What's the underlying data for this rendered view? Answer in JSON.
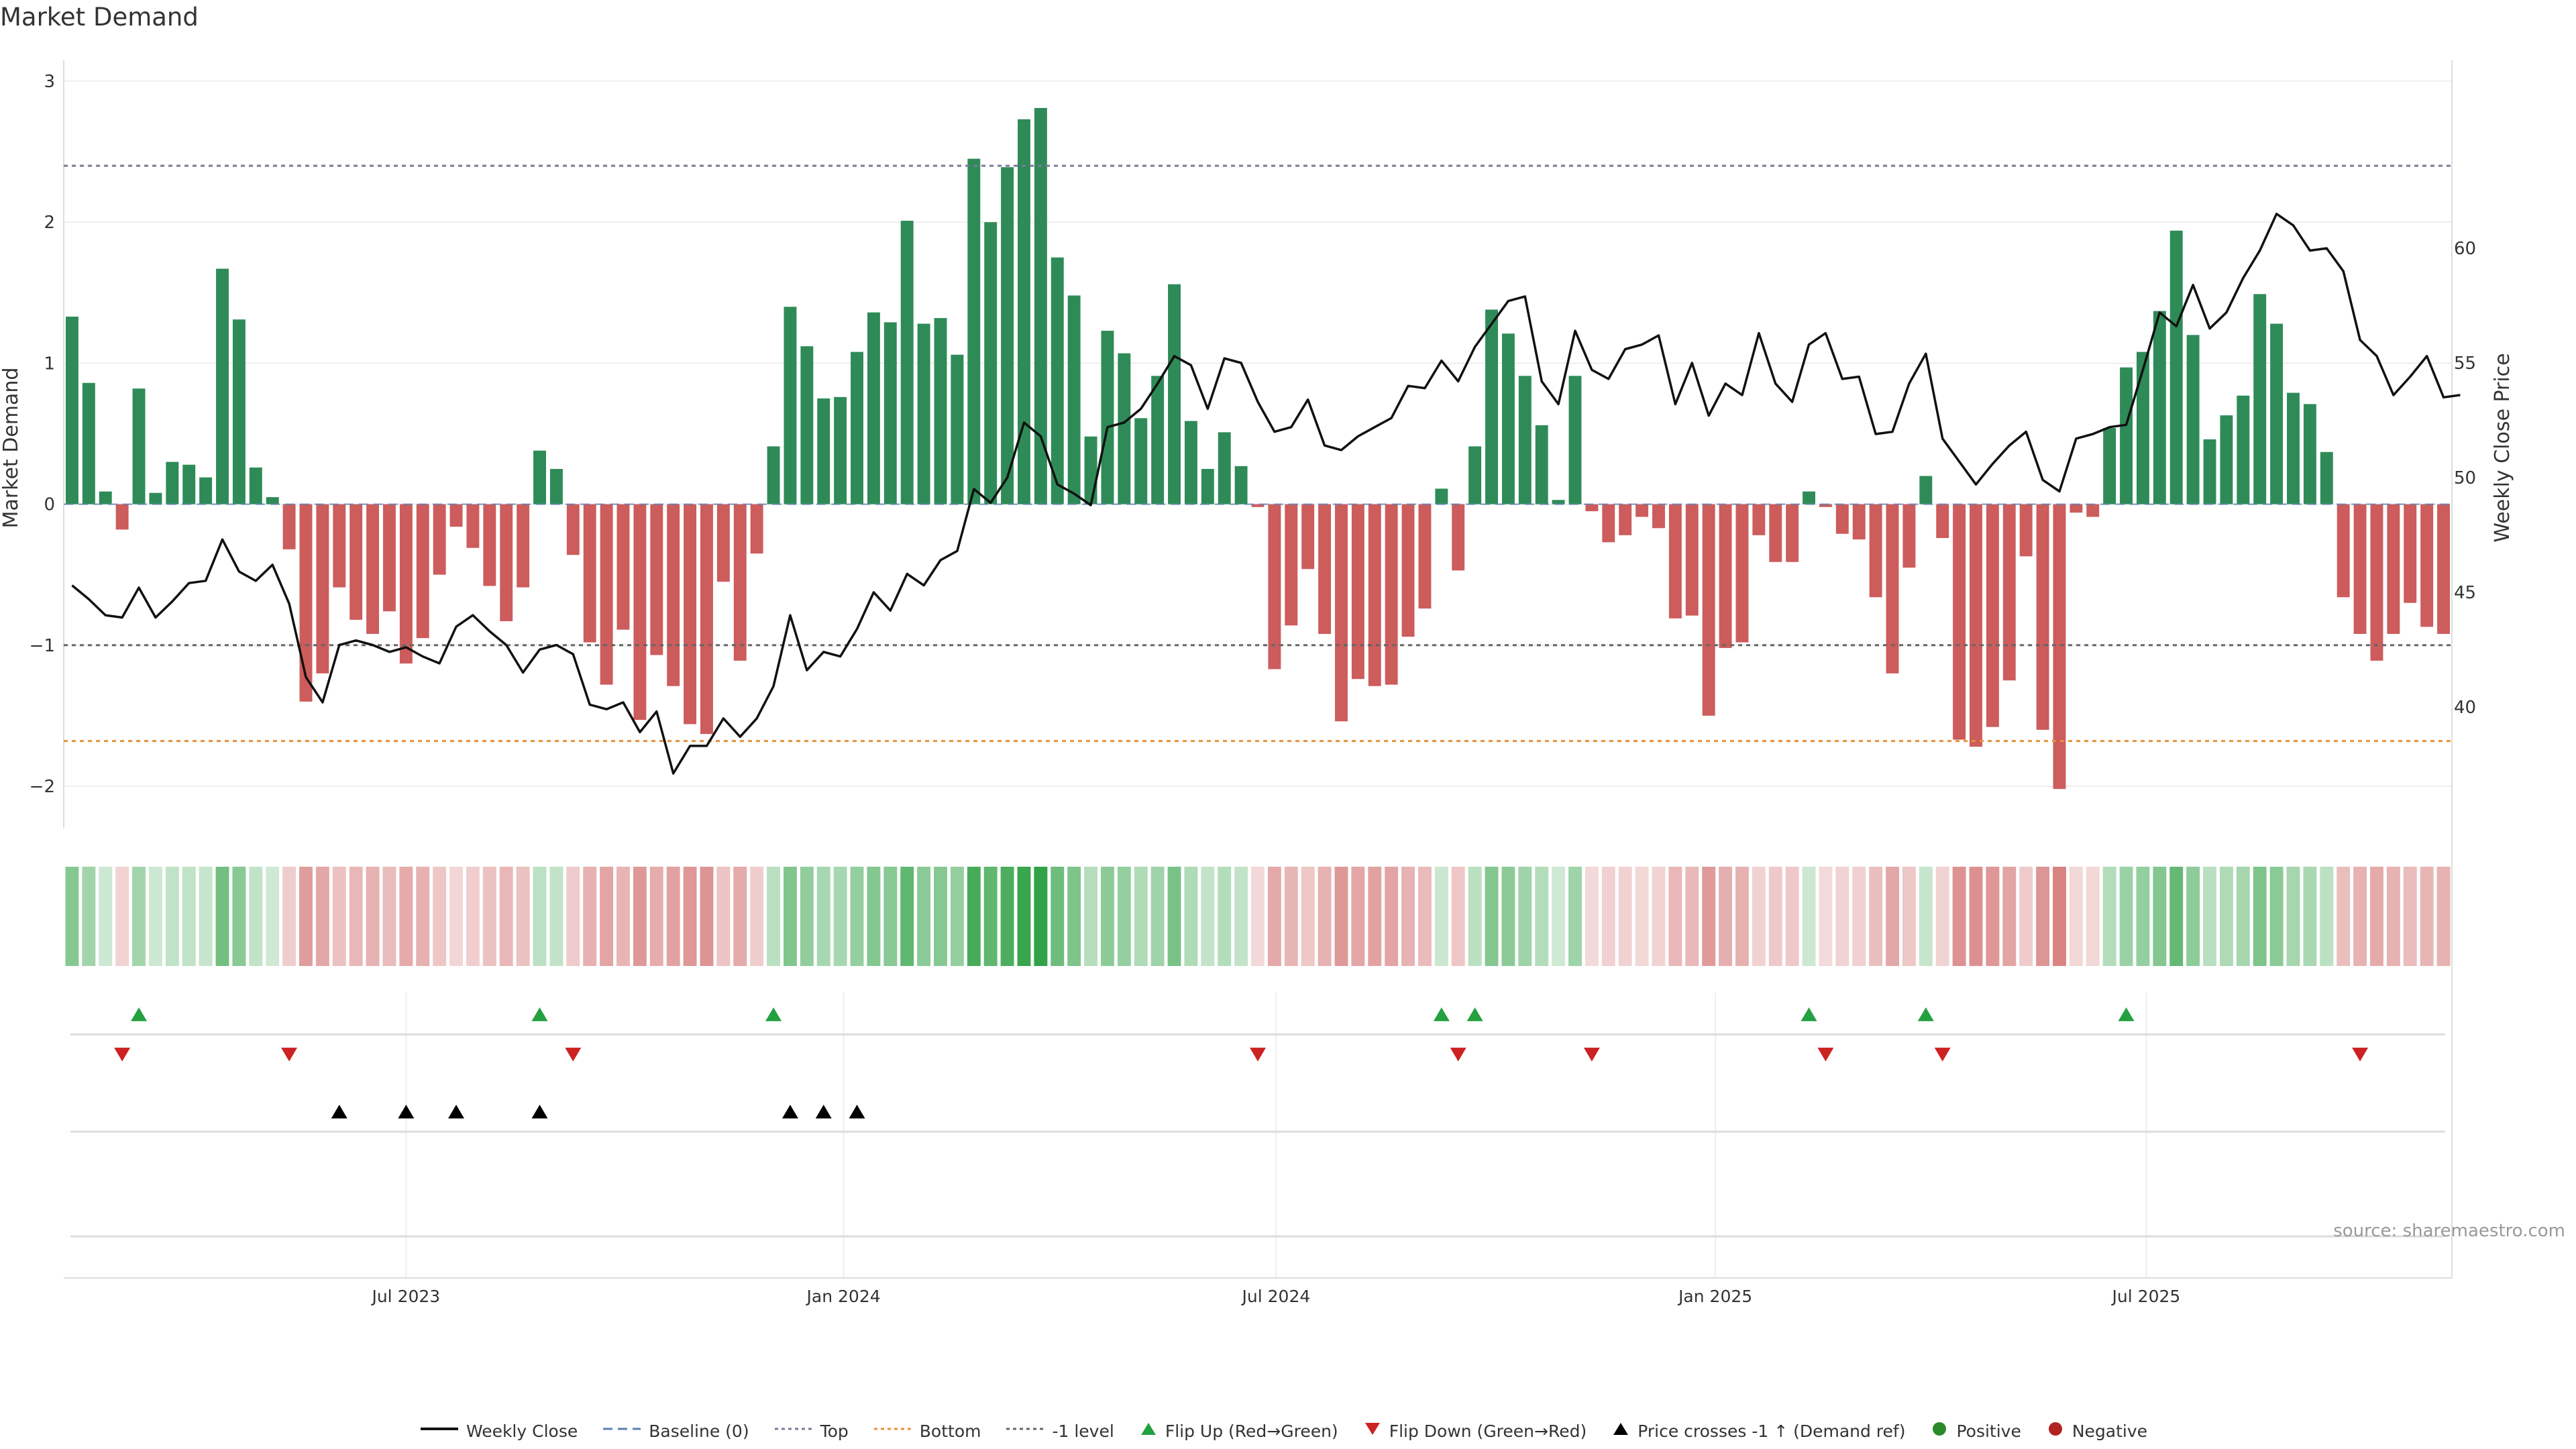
{
  "chart_data": {
    "type": "bar",
    "title": "Market Demand",
    "ylabel": "Market Demand",
    "y2label": "Weekly Close Price",
    "ylim": [
      -2.3,
      3.1
    ],
    "y2lim": [
      34.7,
      67.9
    ],
    "yticks": [
      -2,
      -1,
      0,
      1,
      2,
      3
    ],
    "y2ticks": [
      40,
      45,
      50,
      55,
      60
    ],
    "xticks": [
      {
        "label": "Jul 2023",
        "week": 20.5
      },
      {
        "label": "Jan 2024",
        "week": 46.7
      },
      {
        "label": "Jul 2024",
        "week": 72.6
      },
      {
        "label": "Jan 2025",
        "week": 98.9
      },
      {
        "label": "Jul 2025",
        "week": 124.7
      }
    ],
    "reference_lines": {
      "top": 2.4,
      "bottom": -1.68,
      "minus_one": -1,
      "baseline": 0
    },
    "demand": [
      1.33,
      0.86,
      0.09,
      -0.18,
      0.82,
      0.08,
      0.3,
      0.28,
      0.19,
      1.67,
      1.31,
      0.26,
      0.05,
      -0.32,
      -1.4,
      -1.2,
      -0.59,
      -0.82,
      -0.92,
      -0.76,
      -1.13,
      -0.95,
      -0.5,
      -0.16,
      -0.31,
      -0.58,
      -0.83,
      -0.59,
      0.38,
      0.25,
      -0.36,
      -0.98,
      -1.28,
      -0.89,
      -1.53,
      -1.07,
      -1.29,
      -1.56,
      -1.63,
      -0.55,
      -1.11,
      -0.35,
      0.41,
      1.4,
      1.12,
      0.75,
      0.76,
      1.08,
      1.36,
      1.29,
      2.01,
      1.28,
      1.32,
      1.06,
      2.45,
      2.0,
      2.39,
      2.73,
      2.81,
      1.75,
      1.48,
      0.48,
      1.23,
      1.07,
      0.61,
      0.91,
      1.56,
      0.59,
      0.25,
      0.51,
      0.27,
      -0.02,
      -1.17,
      -0.86,
      -0.46,
      -0.92,
      -1.54,
      -1.24,
      -1.29,
      -1.28,
      -0.94,
      -0.74,
      0.11,
      -0.47,
      0.41,
      1.38,
      1.21,
      0.91,
      0.56,
      0.03,
      0.91,
      -0.05,
      -0.27,
      -0.22,
      -0.09,
      -0.17,
      -0.81,
      -0.79,
      -1.5,
      -1.02,
      -0.98,
      -0.22,
      -0.41,
      -0.41,
      0.09,
      -0.02,
      -0.21,
      -0.25,
      -0.66,
      -1.2,
      -0.45,
      0.2,
      -0.24,
      -1.67,
      -1.72,
      -1.58,
      -1.25,
      -0.37,
      -1.6,
      -2.02,
      -0.06,
      -0.09,
      0.54,
      0.97,
      1.08,
      1.37,
      1.94,
      1.2,
      0.46,
      0.63,
      0.77,
      1.49,
      1.28,
      0.79,
      0.71,
      0.37,
      -0.66,
      -0.92,
      -1.11,
      -0.92,
      -0.7,
      -0.87,
      -0.92
    ],
    "close_price": [
      45.3,
      44.7,
      44.0,
      43.9,
      45.2,
      43.9,
      44.6,
      45.4,
      45.5,
      47.3,
      45.9,
      45.5,
      46.2,
      44.5,
      41.3,
      40.2,
      42.7,
      42.9,
      42.7,
      42.4,
      42.6,
      42.2,
      41.9,
      43.5,
      44.0,
      43.3,
      42.7,
      41.5,
      42.5,
      42.7,
      42.3,
      40.1,
      39.9,
      40.2,
      38.9,
      39.8,
      37.1,
      38.3,
      38.3,
      39.5,
      38.7,
      39.5,
      40.9,
      44.0,
      41.6,
      42.4,
      42.2,
      43.4,
      45.0,
      44.2,
      45.8,
      45.3,
      46.4,
      46.8,
      49.5,
      48.9,
      50.0,
      52.4,
      51.8,
      49.7,
      49.3,
      48.8,
      52.2,
      52.4,
      53.0,
      54.1,
      55.3,
      54.9,
      53.0,
      55.2,
      55.0,
      53.3,
      52.0,
      52.2,
      53.4,
      51.4,
      51.2,
      51.8,
      52.2,
      52.6,
      54.0,
      53.9,
      55.1,
      54.2,
      55.7,
      56.7,
      57.7,
      57.9,
      54.2,
      53.2,
      56.4,
      54.7,
      54.3,
      55.6,
      55.8,
      56.2,
      53.2,
      55.0,
      52.7,
      54.1,
      53.6,
      56.3,
      54.1,
      53.3,
      55.8,
      56.3,
      54.3,
      54.4,
      51.9,
      52.0,
      54.1,
      55.4,
      51.7,
      50.7,
      49.7,
      50.6,
      51.4,
      52.0,
      49.9,
      49.4,
      51.7,
      51.9,
      52.2,
      52.3,
      54.7,
      57.2,
      56.6,
      58.4,
      56.5,
      57.2,
      58.7,
      59.9,
      61.5,
      61.0,
      59.9,
      60.0,
      59.0,
      56.0,
      55.3,
      53.6,
      54.4,
      55.3,
      53.5,
      53.6
    ],
    "flip_up_weeks": [
      4,
      28,
      42,
      82,
      84,
      104,
      111,
      123
    ],
    "flip_down_weeks": [
      3,
      13,
      30,
      71,
      83,
      91,
      105,
      112,
      137
    ],
    "price_cross_weeks": [
      16,
      20,
      23,
      28,
      43,
      45,
      47
    ],
    "legend": [
      {
        "key": "weekly-close",
        "label": "Weekly Close"
      },
      {
        "key": "baseline",
        "label": "Baseline (0)"
      },
      {
        "key": "top",
        "label": "Top"
      },
      {
        "key": "bottom",
        "label": "Bottom"
      },
      {
        "key": "minus-one",
        "label": "-1 level"
      },
      {
        "key": "flip-up",
        "label": "Flip Up (Red→Green)"
      },
      {
        "key": "flip-down",
        "label": "Flip Down (Green→Red)"
      },
      {
        "key": "price-cross",
        "label": "Price crosses -1 ↑ (Demand ref)"
      },
      {
        "key": "positive",
        "label": "Positive"
      },
      {
        "key": "negative",
        "label": "Negative"
      }
    ],
    "source": "source: sharemaestro.com"
  },
  "colors": {
    "positive": "#2e8b57",
    "negative": "#cd5c5c",
    "price": "#111111",
    "top_line": "#7a7a9a",
    "bottom_line": "#e8913a",
    "minus_one_line": "#666666",
    "baseline": "#5a7fb0",
    "flip_up": "#23a040",
    "flip_down": "#cc2222",
    "cross": "#000000",
    "positive_dot": "#2a8a2a",
    "negative_dot": "#b22222"
  }
}
